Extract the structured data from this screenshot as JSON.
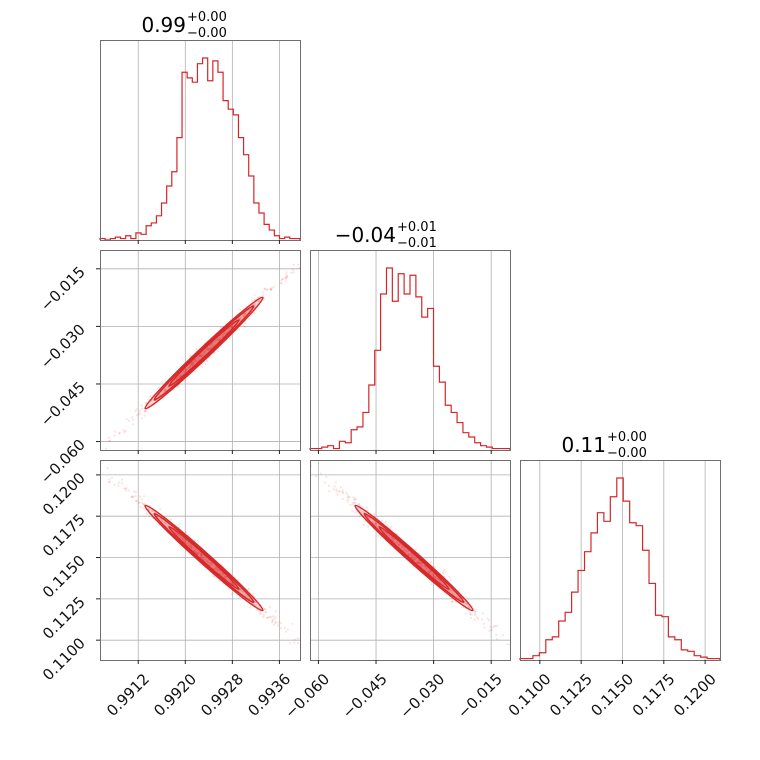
{
  "chart_data": {
    "type": "corner",
    "color": "#d62728",
    "parameters": [
      {
        "title": {
          "value": "0.99",
          "sup": "+0.00",
          "sub": "−0.00"
        },
        "range": [
          0.99055,
          0.99395
        ],
        "ticks": [
          {
            "v": 0.9912,
            "label": "0.9912"
          },
          {
            "v": 0.992,
            "label": "0.9920"
          },
          {
            "v": 0.9928,
            "label": "0.9928"
          },
          {
            "v": 0.9936,
            "label": "0.9936"
          }
        ],
        "hist": [
          1,
          0,
          1,
          2,
          1,
          3,
          1,
          5,
          4,
          10,
          12,
          17,
          26,
          38,
          48,
          72,
          118,
          114,
          111,
          124,
          128,
          112,
          126,
          118,
          98,
          92,
          88,
          72,
          60,
          45,
          26,
          19,
          11,
          7,
          3,
          1,
          2,
          1,
          1
        ]
      },
      {
        "title": {
          "value": "−0.04",
          "sup": "+0.01",
          "sub": "−0.01"
        },
        "range": [
          -0.0622,
          -0.0101
        ],
        "ticks": [
          {
            "v": -0.06,
            "label": "−0.060"
          },
          {
            "v": -0.045,
            "label": "−0.045"
          },
          {
            "v": -0.03,
            "label": "−0.030"
          },
          {
            "v": -0.015,
            "label": "−0.015"
          }
        ],
        "hist": [
          1,
          1,
          2,
          3,
          1,
          6,
          5,
          14,
          16,
          26,
          45,
          69,
          108,
          126,
          103,
          122,
          108,
          121,
          106,
          92,
          98,
          58,
          47,
          31,
          26,
          19,
          12,
          9,
          5,
          3,
          2,
          1,
          1,
          1
        ]
      },
      {
        "title": {
          "value": "0.11",
          "sup": "+0.00",
          "sub": "−0.00"
        },
        "range": [
          0.1088,
          0.1209
        ],
        "ticks": [
          {
            "v": 0.11,
            "label": "0.1100"
          },
          {
            "v": 0.1125,
            "label": "0.1125"
          },
          {
            "v": 0.115,
            "label": "0.1150"
          },
          {
            "v": 0.1175,
            "label": "0.1175"
          },
          {
            "v": 0.12,
            "label": "0.1200"
          }
        ],
        "hist": [
          1,
          1,
          3,
          5,
          14,
          16,
          27,
          33,
          47,
          62,
          75,
          88,
          102,
          96,
          113,
          126,
          110,
          95,
          93,
          76,
          53,
          31,
          30,
          16,
          14,
          7,
          6,
          3,
          2,
          1,
          1
        ]
      }
    ],
    "pair_trends": [
      {
        "x": 0,
        "y": 1,
        "slope_sign": 1
      },
      {
        "x": 0,
        "y": 2,
        "slope_sign": -1
      },
      {
        "x": 1,
        "y": 2,
        "slope_sign": -1
      }
    ],
    "grid": true
  }
}
